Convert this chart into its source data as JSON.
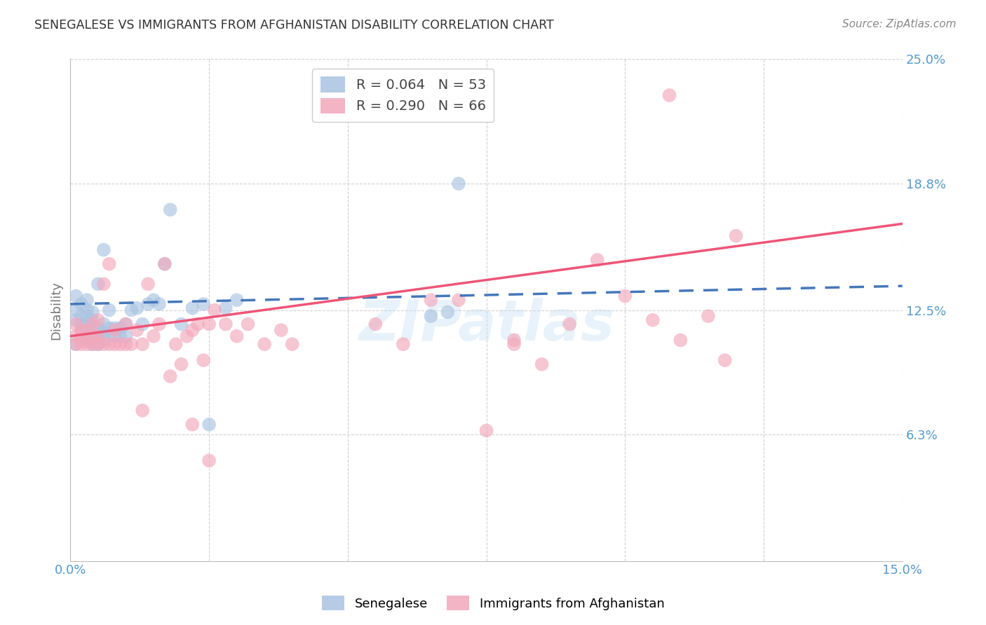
{
  "title": "SENEGALESE VS IMMIGRANTS FROM AFGHANISTAN DISABILITY CORRELATION CHART",
  "source": "Source: ZipAtlas.com",
  "ylabel": "Disability",
  "xlim": [
    0.0,
    0.15
  ],
  "ylim": [
    0.0,
    0.25
  ],
  "yticks": [
    0.063,
    0.125,
    0.188,
    0.25
  ],
  "ytick_labels": [
    "6.3%",
    "12.5%",
    "18.8%",
    "25.0%"
  ],
  "xticks": [
    0.0,
    0.025,
    0.05,
    0.075,
    0.1,
    0.125,
    0.15
  ],
  "xtick_labels": [
    "0.0%",
    "",
    "",
    "",
    "",
    "",
    "15.0%"
  ],
  "legend_entry1": "R = 0.064   N = 53",
  "legend_entry2": "R = 0.290   N = 66",
  "legend_label1": "Senegalese",
  "legend_label2": "Immigrants from Afghanistan",
  "color_blue": "#aac4e2",
  "color_pink": "#f2a8bc",
  "line_color_blue": "#4477bb",
  "line_color_pink": "#ee5577",
  "scatter_alpha": 0.65,
  "blue_x": [
    0.001,
    0.001,
    0.001,
    0.002,
    0.002,
    0.002,
    0.002,
    0.003,
    0.003,
    0.003,
    0.003,
    0.003,
    0.003,
    0.004,
    0.004,
    0.004,
    0.004,
    0.004,
    0.005,
    0.005,
    0.005,
    0.005,
    0.006,
    0.006,
    0.006,
    0.006,
    0.007,
    0.007,
    0.007,
    0.008,
    0.008,
    0.009,
    0.009,
    0.01,
    0.01,
    0.011,
    0.012,
    0.013,
    0.014,
    0.015,
    0.016,
    0.017,
    0.018,
    0.02,
    0.022,
    0.024,
    0.025,
    0.028,
    0.03,
    0.065,
    0.068,
    0.07,
    0.001
  ],
  "blue_y": [
    0.12,
    0.125,
    0.132,
    0.118,
    0.122,
    0.128,
    0.115,
    0.11,
    0.114,
    0.118,
    0.122,
    0.125,
    0.13,
    0.108,
    0.112,
    0.116,
    0.12,
    0.124,
    0.108,
    0.112,
    0.116,
    0.138,
    0.11,
    0.114,
    0.118,
    0.155,
    0.112,
    0.116,
    0.125,
    0.112,
    0.116,
    0.112,
    0.116,
    0.112,
    0.118,
    0.125,
    0.126,
    0.118,
    0.128,
    0.13,
    0.128,
    0.148,
    0.175,
    0.118,
    0.126,
    0.128,
    0.068,
    0.126,
    0.13,
    0.122,
    0.124,
    0.188,
    0.108
  ],
  "pink_x": [
    0.001,
    0.001,
    0.001,
    0.002,
    0.002,
    0.002,
    0.003,
    0.003,
    0.003,
    0.004,
    0.004,
    0.004,
    0.005,
    0.005,
    0.005,
    0.006,
    0.006,
    0.007,
    0.007,
    0.008,
    0.008,
    0.009,
    0.01,
    0.01,
    0.011,
    0.012,
    0.013,
    0.014,
    0.015,
    0.016,
    0.017,
    0.018,
    0.019,
    0.02,
    0.021,
    0.022,
    0.023,
    0.024,
    0.025,
    0.026,
    0.028,
    0.03,
    0.032,
    0.035,
    0.038,
    0.04,
    0.055,
    0.06,
    0.065,
    0.07,
    0.075,
    0.08,
    0.085,
    0.09,
    0.095,
    0.1,
    0.105,
    0.108,
    0.11,
    0.115,
    0.118,
    0.12,
    0.08,
    0.013,
    0.022,
    0.025
  ],
  "pink_y": [
    0.118,
    0.112,
    0.108,
    0.112,
    0.108,
    0.115,
    0.11,
    0.108,
    0.115,
    0.108,
    0.112,
    0.118,
    0.108,
    0.112,
    0.12,
    0.108,
    0.138,
    0.108,
    0.148,
    0.108,
    0.115,
    0.108,
    0.108,
    0.118,
    0.108,
    0.115,
    0.108,
    0.138,
    0.112,
    0.118,
    0.148,
    0.092,
    0.108,
    0.098,
    0.112,
    0.115,
    0.118,
    0.1,
    0.118,
    0.125,
    0.118,
    0.112,
    0.118,
    0.108,
    0.115,
    0.108,
    0.118,
    0.108,
    0.13,
    0.13,
    0.065,
    0.108,
    0.098,
    0.118,
    0.15,
    0.132,
    0.12,
    0.232,
    0.11,
    0.122,
    0.1,
    0.162,
    0.11,
    0.075,
    0.068,
    0.05
  ],
  "watermark": "ZIPatlas",
  "bg_color": "#ffffff",
  "grid_color": "#cccccc",
  "axis_label_color": "#5599cc",
  "title_color": "#333333",
  "source_color": "#888888"
}
